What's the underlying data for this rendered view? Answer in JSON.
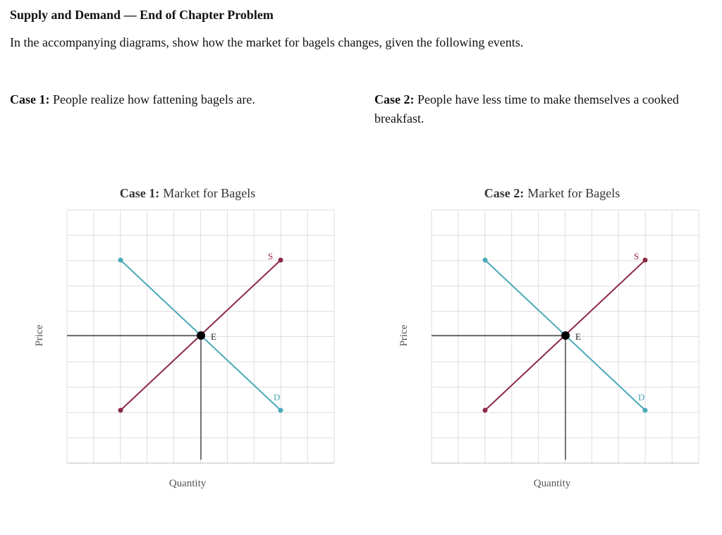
{
  "header": {
    "title": "Supply and Demand — End of Chapter Problem"
  },
  "intro": "In the accompanying diagrams, show how the market for bagels changes, given the following events.",
  "cases": [
    {
      "label": "Case 1:",
      "text": "People realize how fattening bagels are."
    },
    {
      "label": "Case 2:",
      "text": "People have less time to make themselves a cooked breakfast."
    }
  ],
  "graphs": [
    {
      "label": "Case 1:",
      "title": "Market for Bagels",
      "y_label": "Price",
      "x_label": "Quantity",
      "supply_label": "S",
      "demand_label": "D",
      "equilibrium_label": "E"
    },
    {
      "label": "Case 2:",
      "title": "Market for Bagels",
      "y_label": "Price",
      "x_label": "Quantity",
      "supply_label": "S",
      "demand_label": "D",
      "equilibrium_label": "E"
    }
  ]
}
